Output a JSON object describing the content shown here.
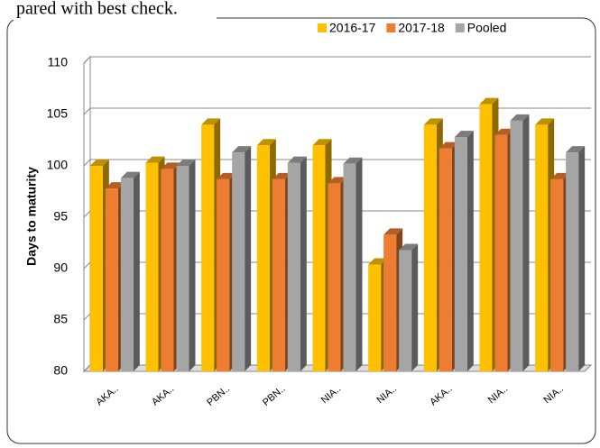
{
  "chart_data": {
    "type": "bar",
    "title": "pared with best check.",
    "y_label": "Days to maturity",
    "categories": [
      "AKA..",
      "AKA..",
      "PBN..",
      "PBN..",
      "NIA..",
      "NIA..",
      "AKA..",
      "NIA..",
      "NIA.."
    ],
    "series": [
      {
        "name": "2016-17",
        "color": "#ffc000",
        "values": [
          100,
          100.3,
          104,
          102,
          102,
          90.4,
          104,
          106,
          104
        ]
      },
      {
        "name": "2017-18",
        "color": "#ed7d31",
        "values": [
          97.8,
          99.7,
          98.7,
          98.7,
          98.3,
          93.3,
          101.7,
          103,
          98.7
        ]
      },
      {
        "name": "Pooled",
        "color": "#a5a5a5",
        "values": [
          98.8,
          100,
          101.3,
          100.3,
          100.2,
          91.8,
          102.8,
          104.4,
          101.3
        ]
      }
    ],
    "ylim": [
      80,
      110
    ],
    "yticks": [
      80,
      85,
      90,
      95,
      100,
      105,
      110
    ],
    "grid": true,
    "legend": "top-right"
  }
}
